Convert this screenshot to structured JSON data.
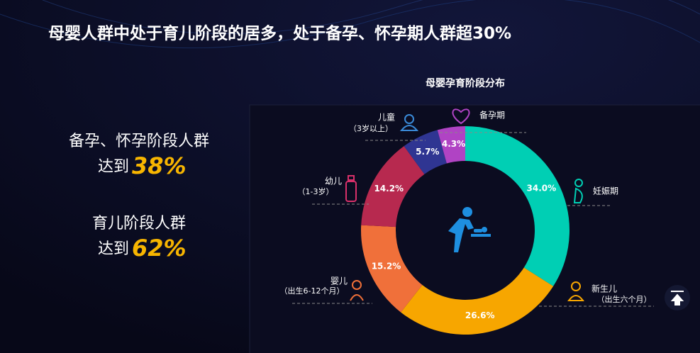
{
  "header": {
    "title": "母婴人群中处于育儿阶段的居多，处于备孕、怀孕期人群超30%"
  },
  "highlights": [
    {
      "label": "备孕、怀孕阶段人群",
      "prefix": "达到",
      "value": "38%"
    },
    {
      "label": "育儿阶段人群",
      "prefix": "达到",
      "value": "62%"
    }
  ],
  "chart_data": {
    "type": "donut",
    "title": "母婴孕育阶段分布",
    "categories": [
      "妊娠期",
      "新生儿",
      "婴儿",
      "幼儿",
      "儿童",
      "备孕期"
    ],
    "category_notes": [
      null,
      "（出生六个月）",
      "（出生6-12个月）",
      "（1-3岁）",
      "（3岁以上）",
      null
    ],
    "values": [
      34.0,
      26.6,
      15.2,
      14.2,
      5.7,
      4.3
    ],
    "value_labels": [
      "34.0%",
      "26.6%",
      "15.2%",
      "14.2%",
      "5.7%",
      "4.3%"
    ],
    "colors": [
      "#00cfb4",
      "#f7a600",
      "#f0703a",
      "#b7294f",
      "#2f3592",
      "#b043c4"
    ]
  }
}
